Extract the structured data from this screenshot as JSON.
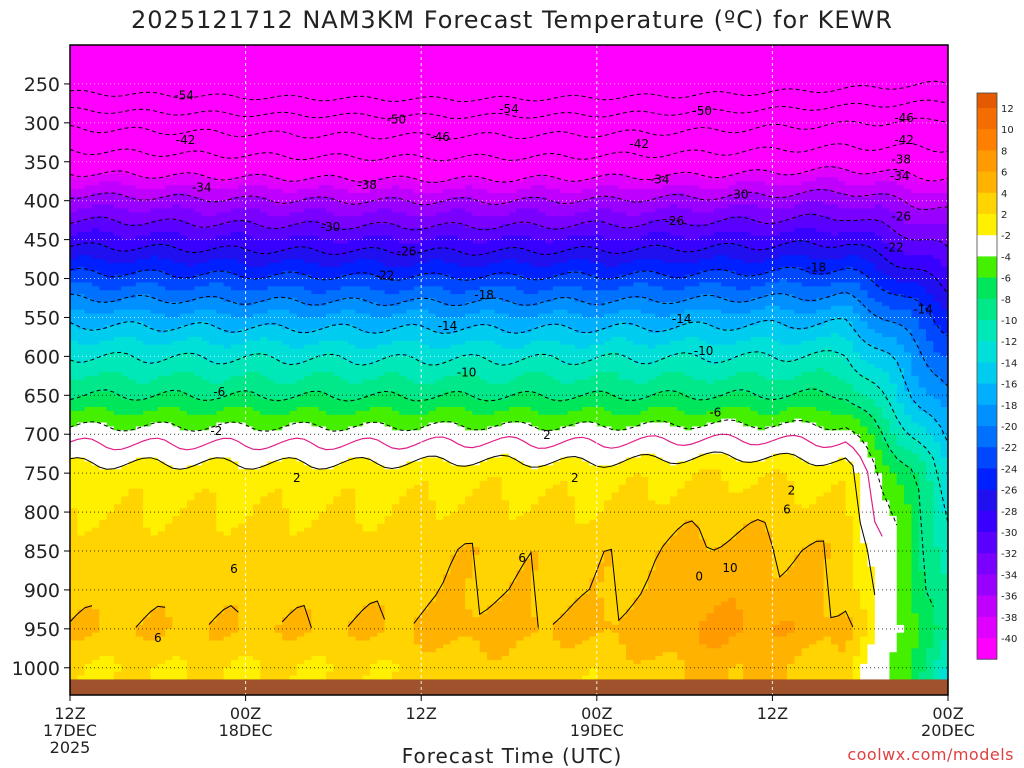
{
  "title": "2025121712 NAM3KM Forecast Temperature (ºC) for KEWR",
  "watermark": "coolwx.com/models",
  "chart_data": {
    "type": "heatmap",
    "title": "2025121712 NAM3KM Forecast Temperature (ºC) for KEWR",
    "xlabel": "Forecast Time (UTC)",
    "ylabel": "",
    "x_ticks": [
      {
        "hour": 0,
        "lines": [
          "12Z",
          "17DEC",
          "2025"
        ]
      },
      {
        "hour": 12,
        "lines": [
          "00Z",
          "18DEC"
        ]
      },
      {
        "hour": 24,
        "lines": [
          "12Z"
        ]
      },
      {
        "hour": 36,
        "lines": [
          "00Z",
          "19DEC"
        ]
      },
      {
        "hour": 48,
        "lines": [
          "12Z"
        ]
      },
      {
        "hour": 60,
        "lines": [
          "00Z",
          "20DEC"
        ]
      }
    ],
    "x_range_hours": [
      0,
      60
    ],
    "y_ticks": [
      250,
      300,
      350,
      400,
      450,
      500,
      550,
      600,
      650,
      700,
      750,
      800,
      850,
      900,
      950,
      1000
    ],
    "y_range_hpa": [
      1035,
      200
    ],
    "colorbar_levels": [
      12,
      10,
      8,
      6,
      4,
      2,
      -2,
      -4,
      -6,
      -8,
      -10,
      -12,
      -14,
      -16,
      -18,
      -20,
      -22,
      -24,
      -26,
      -28,
      -30,
      -32,
      -34,
      -36,
      -38,
      -40
    ],
    "colorbar_colors": [
      "#f46d00",
      "#ff7f00",
      "#ff9a00",
      "#ffb300",
      "#ffd400",
      "#fff000",
      "#ffffff",
      "#44f000",
      "#00e65a",
      "#00e88a",
      "#00e8b8",
      "#00e0d8",
      "#00ccf0",
      "#00b0ff",
      "#0090ff",
      "#0070ff",
      "#0048ff",
      "#0020ff",
      "#2010f0",
      "#3800ff",
      "#5a00ff",
      "#7a00ff",
      "#9a00ff",
      "#c000ff",
      "#e000ff",
      "#ff00ff"
    ],
    "colorbar_top_color": "#e35a00",
    "temperature_profile_hour0": [
      {
        "p": 250,
        "t": -56
      },
      {
        "p": 300,
        "t": -47
      },
      {
        "p": 350,
        "t": -40
      },
      {
        "p": 400,
        "t": -33
      },
      {
        "p": 450,
        "t": -27
      },
      {
        "p": 500,
        "t": -21
      },
      {
        "p": 550,
        "t": -15
      },
      {
        "p": 600,
        "t": -10
      },
      {
        "p": 650,
        "t": -6
      },
      {
        "p": 700,
        "t": -1
      },
      {
        "p": 750,
        "t": 3
      },
      {
        "p": 800,
        "t": 4
      },
      {
        "p": 850,
        "t": 5
      },
      {
        "p": 900,
        "t": 5
      },
      {
        "p": 950,
        "t": 6
      },
      {
        "p": 1000,
        "t": 4
      }
    ],
    "contour_labels": [
      {
        "t": "-54",
        "h": 7.8,
        "p": 265
      },
      {
        "t": "-54",
        "h": 30.0,
        "p": 282
      },
      {
        "t": "-50",
        "h": 43.2,
        "p": 285
      },
      {
        "t": "-50",
        "h": 22.3,
        "p": 296
      },
      {
        "t": "-46",
        "h": 25.3,
        "p": 318
      },
      {
        "t": "-46",
        "h": 57.0,
        "p": 294
      },
      {
        "t": "-42",
        "h": 7.9,
        "p": 322
      },
      {
        "t": "-42",
        "h": 38.9,
        "p": 327
      },
      {
        "t": "-42",
        "h": 57.0,
        "p": 322
      },
      {
        "t": "-38",
        "h": 20.3,
        "p": 380
      },
      {
        "t": "-38",
        "h": 56.8,
        "p": 347
      },
      {
        "t": "-34",
        "h": 9.0,
        "p": 383
      },
      {
        "t": "-34",
        "h": 40.3,
        "p": 373
      },
      {
        "t": "-34",
        "h": 56.7,
        "p": 368
      },
      {
        "t": "-30",
        "h": 17.8,
        "p": 434
      },
      {
        "t": "-30",
        "h": 45.7,
        "p": 392
      },
      {
        "t": "-26",
        "h": 23.0,
        "p": 465
      },
      {
        "t": "-26",
        "h": 41.3,
        "p": 426
      },
      {
        "t": "-26",
        "h": 56.8,
        "p": 420
      },
      {
        "t": "-22",
        "h": 21.5,
        "p": 496
      },
      {
        "t": "-22",
        "h": 56.3,
        "p": 460
      },
      {
        "t": "-18",
        "h": 28.3,
        "p": 521
      },
      {
        "t": "-18",
        "h": 51.0,
        "p": 486
      },
      {
        "t": "-14",
        "h": 25.8,
        "p": 561
      },
      {
        "t": "-14",
        "h": 41.8,
        "p": 552
      },
      {
        "t": "-14",
        "h": 58.3,
        "p": 540
      },
      {
        "t": "-10",
        "h": 27.1,
        "p": 621
      },
      {
        "t": "-10",
        "h": 43.3,
        "p": 593
      },
      {
        "t": "-6",
        "h": 10.2,
        "p": 646
      },
      {
        "t": "-6",
        "h": 44.1,
        "p": 672
      },
      {
        "t": "-2",
        "h": 10.0,
        "p": 696
      },
      {
        "t": "2",
        "h": 32.6,
        "p": 701
      },
      {
        "t": "2",
        "h": 15.5,
        "p": 756
      },
      {
        "t": "2",
        "h": 34.5,
        "p": 756
      },
      {
        "t": "2",
        "h": 49.3,
        "p": 772
      },
      {
        "t": "6",
        "h": 30.9,
        "p": 859
      },
      {
        "t": "6",
        "h": 11.2,
        "p": 873
      },
      {
        "t": "6",
        "h": 49.0,
        "p": 797
      },
      {
        "t": "6",
        "h": 6.0,
        "p": 962
      },
      {
        "t": "10",
        "h": 45.1,
        "p": 872
      },
      {
        "t": "0",
        "h": 43.0,
        "p": 883
      }
    ]
  }
}
